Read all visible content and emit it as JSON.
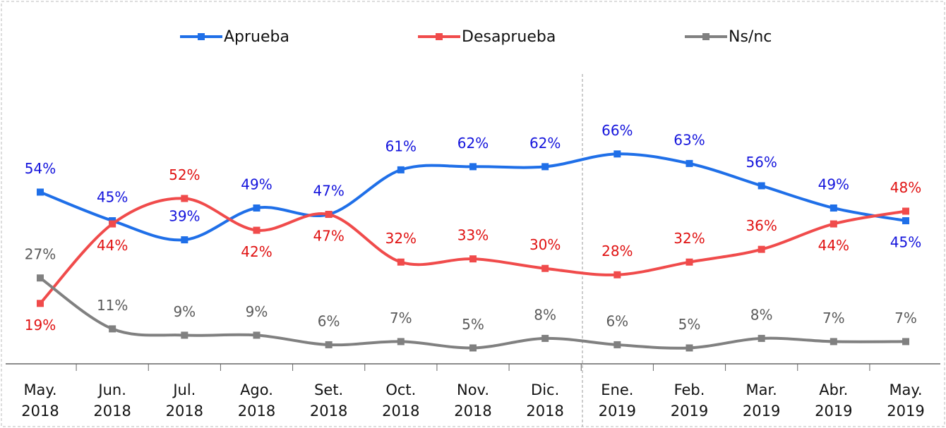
{
  "chart_data": {
    "type": "line",
    "categories": [
      "May.\n2018",
      "Jun.\n2018",
      "Jul.\n2018",
      "Ago.\n2018",
      "Set.\n2018",
      "Oct.\n2018",
      "Nov.\n2018",
      "Dic.\n2018",
      "Ene.\n2019",
      "Feb.\n2019",
      "Mar.\n2019",
      "Abr.\n2019",
      "May.\n2019"
    ],
    "ylim": [
      0,
      100
    ],
    "legend": "top",
    "series": [
      {
        "name": "Aprueba",
        "color": "#1f6fe8",
        "label_color": "#1414dc",
        "values": [
          54,
          45,
          39,
          49,
          47,
          61,
          62,
          62,
          66,
          63,
          56,
          49,
          45
        ],
        "value_labels": [
          "54%",
          "45%",
          "39%",
          "49%",
          "47%",
          "61%",
          "62%",
          "62%",
          "66%",
          "63%",
          "56%",
          "49%",
          "45%"
        ]
      },
      {
        "name": "Desaprueba",
        "color": "#f04b4b",
        "label_color": "#e01212",
        "values": [
          19,
          44,
          52,
          42,
          47,
          32,
          33,
          30,
          28,
          32,
          36,
          44,
          48
        ],
        "value_labels": [
          "19%",
          "44%",
          "52%",
          "42%",
          "47%",
          "32%",
          "33%",
          "30%",
          "28%",
          "32%",
          "36%",
          "44%",
          "48%"
        ]
      },
      {
        "name": "Ns/nc",
        "color": "#808080",
        "label_color": "#5a5a5a",
        "values": [
          27,
          11,
          9,
          9,
          6,
          7,
          5,
          8,
          6,
          5,
          8,
          7,
          7
        ],
        "value_labels": [
          "27%",
          "11%",
          "9%",
          "9%",
          "6%",
          "7%",
          "5%",
          "8%",
          "6%",
          "5%",
          "8%",
          "7%",
          "7%"
        ]
      }
    ]
  }
}
